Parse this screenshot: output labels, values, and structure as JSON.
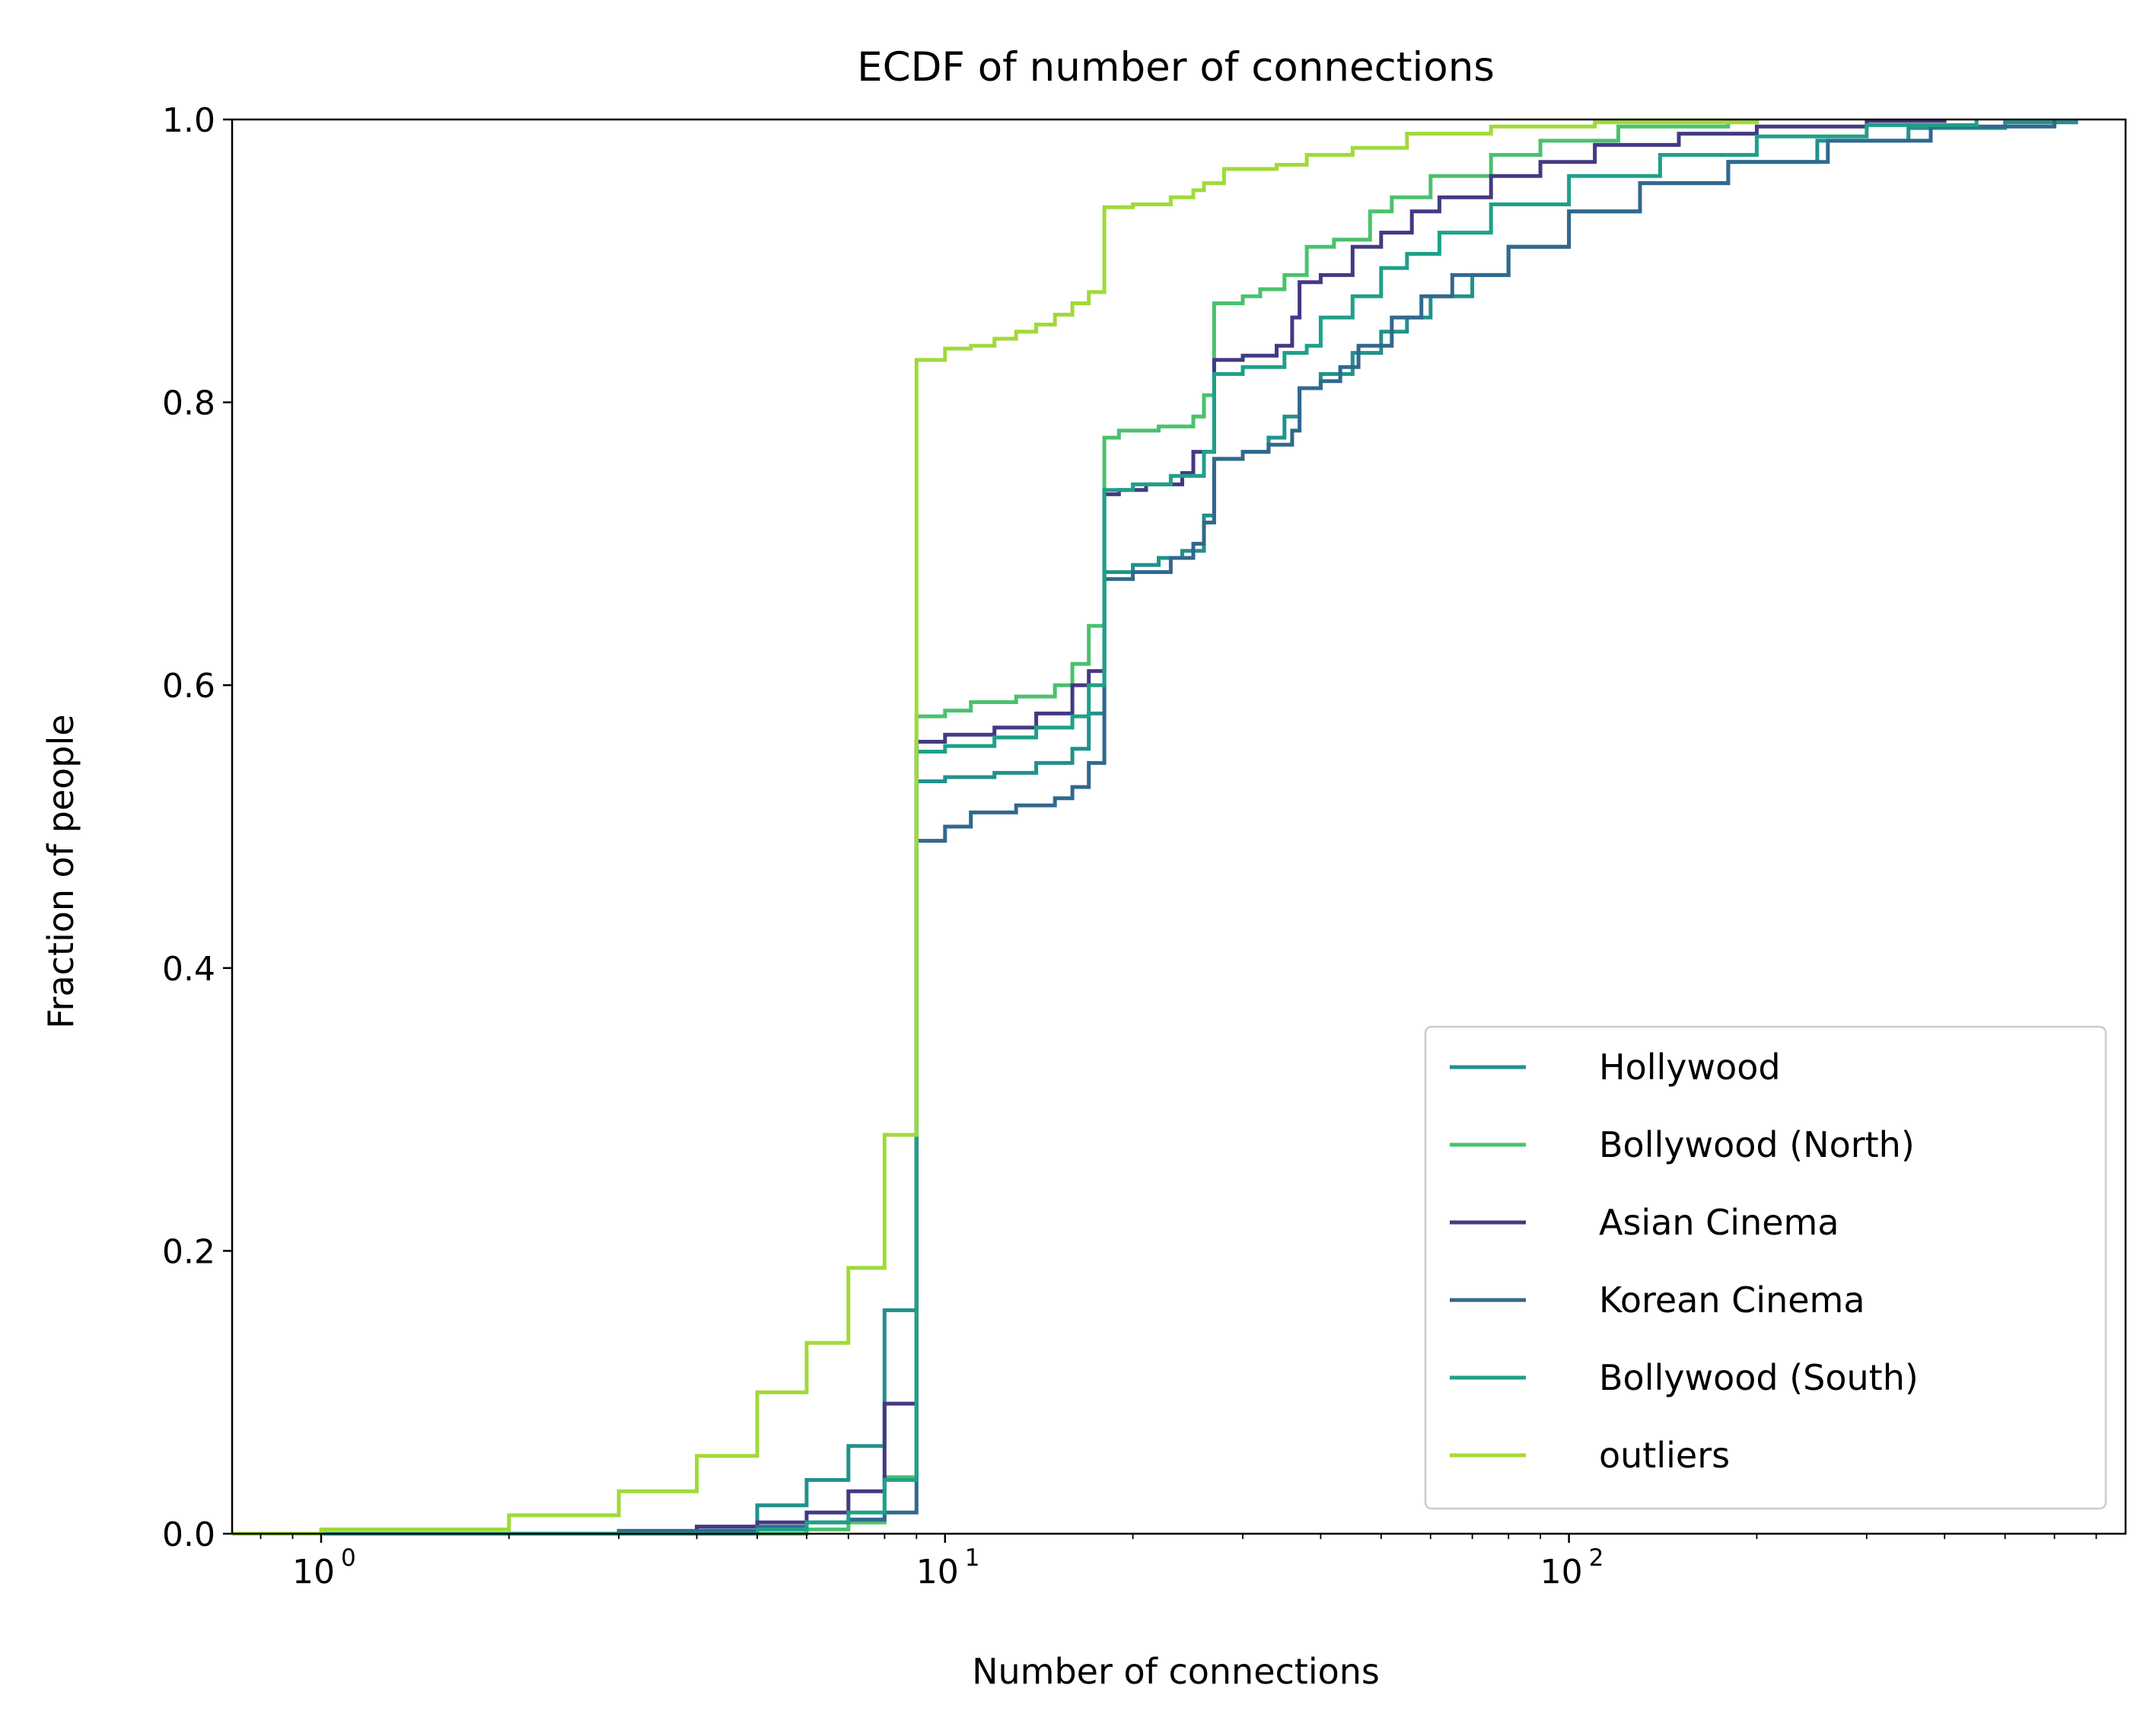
{
  "chart_data": {
    "type": "line",
    "title": "ECDF of number of connections",
    "xlabel": "Number of connections",
    "ylabel": "Fraction of people",
    "xscale": "log",
    "xlim": [
      0.72,
      780
    ],
    "ylim": [
      0.0,
      1.0
    ],
    "x_ticks": [
      {
        "value": 1,
        "base": "10",
        "exp": "0"
      },
      {
        "value": 10,
        "base": "10",
        "exp": "1"
      },
      {
        "value": 100,
        "base": "10",
        "exp": "2"
      }
    ],
    "y_ticks": [
      "0.0",
      "0.2",
      "0.4",
      "0.6",
      "0.8",
      "1.0"
    ],
    "grid": false,
    "legend_position": "lower-right",
    "series": [
      {
        "name": "Hollywood",
        "color": "#21918c",
        "points": [
          [
            0.72,
            0
          ],
          [
            1,
            0
          ],
          [
            4,
            0.005
          ],
          [
            5,
            0.02
          ],
          [
            6,
            0.038
          ],
          [
            7,
            0.062
          ],
          [
            8,
            0.158
          ],
          [
            9,
            0.532
          ],
          [
            10,
            0.535
          ],
          [
            12,
            0.538
          ],
          [
            14,
            0.545
          ],
          [
            16,
            0.555
          ],
          [
            17,
            0.58
          ],
          [
            18,
            0.68
          ],
          [
            20,
            0.685
          ],
          [
            22,
            0.69
          ],
          [
            24,
            0.695
          ],
          [
            26,
            0.72
          ],
          [
            27,
            0.76
          ],
          [
            30,
            0.765
          ],
          [
            33,
            0.775
          ],
          [
            35,
            0.79
          ],
          [
            37,
            0.81
          ],
          [
            40,
            0.82
          ],
          [
            45,
            0.835
          ],
          [
            50,
            0.85
          ],
          [
            55,
            0.86
          ],
          [
            60,
            0.875
          ],
          [
            70,
            0.89
          ],
          [
            80,
            0.91
          ],
          [
            100,
            0.935
          ],
          [
            130,
            0.955
          ],
          [
            180,
            0.97
          ],
          [
            250,
            0.985
          ],
          [
            350,
            0.994
          ],
          [
            500,
            0.998
          ],
          [
            650,
            1.0
          ]
        ]
      },
      {
        "name": "Bollywood (North)",
        "color": "#4ac16d",
        "points": [
          [
            0.72,
            0
          ],
          [
            3,
            0
          ],
          [
            6,
            0.003
          ],
          [
            7,
            0.008
          ],
          [
            8,
            0.04
          ],
          [
            9,
            0.578
          ],
          [
            10,
            0.582
          ],
          [
            11,
            0.588
          ],
          [
            13,
            0.592
          ],
          [
            15,
            0.6
          ],
          [
            16,
            0.615
          ],
          [
            17,
            0.642
          ],
          [
            18,
            0.775
          ],
          [
            19,
            0.78
          ],
          [
            22,
            0.783
          ],
          [
            25,
            0.79
          ],
          [
            26,
            0.805
          ],
          [
            27,
            0.87
          ],
          [
            30,
            0.875
          ],
          [
            32,
            0.88
          ],
          [
            35,
            0.89
          ],
          [
            38,
            0.91
          ],
          [
            42,
            0.915
          ],
          [
            48,
            0.935
          ],
          [
            52,
            0.945
          ],
          [
            60,
            0.96
          ],
          [
            75,
            0.975
          ],
          [
            90,
            0.985
          ],
          [
            120,
            0.995
          ],
          [
            180,
            1.0
          ]
        ]
      },
      {
        "name": "Asian Cinema",
        "color": "#443983",
        "points": [
          [
            0.72,
            0
          ],
          [
            3,
            0
          ],
          [
            4,
            0.005
          ],
          [
            5,
            0.008
          ],
          [
            6,
            0.015
          ],
          [
            7,
            0.03
          ],
          [
            8,
            0.092
          ],
          [
            9,
            0.56
          ],
          [
            10,
            0.565
          ],
          [
            12,
            0.57
          ],
          [
            14,
            0.58
          ],
          [
            16,
            0.6
          ],
          [
            17,
            0.61
          ],
          [
            18,
            0.735
          ],
          [
            19,
            0.738
          ],
          [
            21,
            0.742
          ],
          [
            24,
            0.75
          ],
          [
            25,
            0.765
          ],
          [
            27,
            0.83
          ],
          [
            30,
            0.833
          ],
          [
            34,
            0.84
          ],
          [
            36,
            0.86
          ],
          [
            37,
            0.885
          ],
          [
            40,
            0.89
          ],
          [
            45,
            0.91
          ],
          [
            50,
            0.92
          ],
          [
            56,
            0.935
          ],
          [
            62,
            0.945
          ],
          [
            75,
            0.96
          ],
          [
            90,
            0.97
          ],
          [
            110,
            0.982
          ],
          [
            150,
            0.99
          ],
          [
            200,
            0.995
          ],
          [
            300,
            0.999
          ],
          [
            400,
            1.0
          ]
        ]
      },
      {
        "name": "Korean Cinema",
        "color": "#31688e",
        "points": [
          [
            0.72,
            0
          ],
          [
            1,
            0
          ],
          [
            3,
            0.002
          ],
          [
            5,
            0.005
          ],
          [
            6,
            0.008
          ],
          [
            7,
            0.01
          ],
          [
            8,
            0.015
          ],
          [
            9,
            0.49
          ],
          [
            10,
            0.5
          ],
          [
            11,
            0.51
          ],
          [
            13,
            0.515
          ],
          [
            15,
            0.52
          ],
          [
            16,
            0.528
          ],
          [
            17,
            0.545
          ],
          [
            18,
            0.675
          ],
          [
            20,
            0.68
          ],
          [
            23,
            0.69
          ],
          [
            25,
            0.7
          ],
          [
            26,
            0.715
          ],
          [
            27,
            0.76
          ],
          [
            30,
            0.765
          ],
          [
            33,
            0.77
          ],
          [
            36,
            0.78
          ],
          [
            37,
            0.81
          ],
          [
            40,
            0.815
          ],
          [
            43,
            0.825
          ],
          [
            46,
            0.84
          ],
          [
            52,
            0.86
          ],
          [
            58,
            0.875
          ],
          [
            65,
            0.89
          ],
          [
            80,
            0.91
          ],
          [
            100,
            0.935
          ],
          [
            130,
            0.955
          ],
          [
            180,
            0.97
          ],
          [
            260,
            0.985
          ],
          [
            380,
            0.995
          ],
          [
            600,
            1.0
          ]
        ]
      },
      {
        "name": "Bollywood (South)",
        "color": "#1fa088",
        "points": [
          [
            0.72,
            0
          ],
          [
            4,
            0
          ],
          [
            5,
            0.003
          ],
          [
            6,
            0.008
          ],
          [
            7,
            0.015
          ],
          [
            8,
            0.038
          ],
          [
            9,
            0.553
          ],
          [
            10,
            0.557
          ],
          [
            12,
            0.563
          ],
          [
            14,
            0.57
          ],
          [
            16,
            0.578
          ],
          [
            17,
            0.6
          ],
          [
            18,
            0.738
          ],
          [
            20,
            0.742
          ],
          [
            23,
            0.748
          ],
          [
            26,
            0.765
          ],
          [
            27,
            0.82
          ],
          [
            30,
            0.825
          ],
          [
            35,
            0.835
          ],
          [
            38,
            0.84
          ],
          [
            40,
            0.86
          ],
          [
            45,
            0.875
          ],
          [
            50,
            0.895
          ],
          [
            55,
            0.905
          ],
          [
            62,
            0.92
          ],
          [
            75,
            0.94
          ],
          [
            100,
            0.96
          ],
          [
            140,
            0.975
          ],
          [
            200,
            0.988
          ],
          [
            300,
            0.996
          ],
          [
            450,
            1.0
          ]
        ]
      },
      {
        "name": "outliers",
        "color": "#a0da39",
        "points": [
          [
            0.72,
            0
          ],
          [
            1,
            0.003
          ],
          [
            2,
            0.013
          ],
          [
            3,
            0.03
          ],
          [
            4,
            0.055
          ],
          [
            5,
            0.1
          ],
          [
            6,
            0.135
          ],
          [
            7,
            0.188
          ],
          [
            8,
            0.282
          ],
          [
            9,
            0.83
          ],
          [
            10,
            0.838
          ],
          [
            11,
            0.84
          ],
          [
            12,
            0.845
          ],
          [
            13,
            0.85
          ],
          [
            14,
            0.855
          ],
          [
            15,
            0.862
          ],
          [
            16,
            0.87
          ],
          [
            17,
            0.878
          ],
          [
            18,
            0.938
          ],
          [
            20,
            0.94
          ],
          [
            23,
            0.945
          ],
          [
            25,
            0.95
          ],
          [
            26,
            0.955
          ],
          [
            28,
            0.965
          ],
          [
            34,
            0.968
          ],
          [
            38,
            0.975
          ],
          [
            45,
            0.98
          ],
          [
            55,
            0.99
          ],
          [
            75,
            0.995
          ],
          [
            110,
            0.998
          ],
          [
            200,
            1.0
          ]
        ]
      }
    ]
  }
}
